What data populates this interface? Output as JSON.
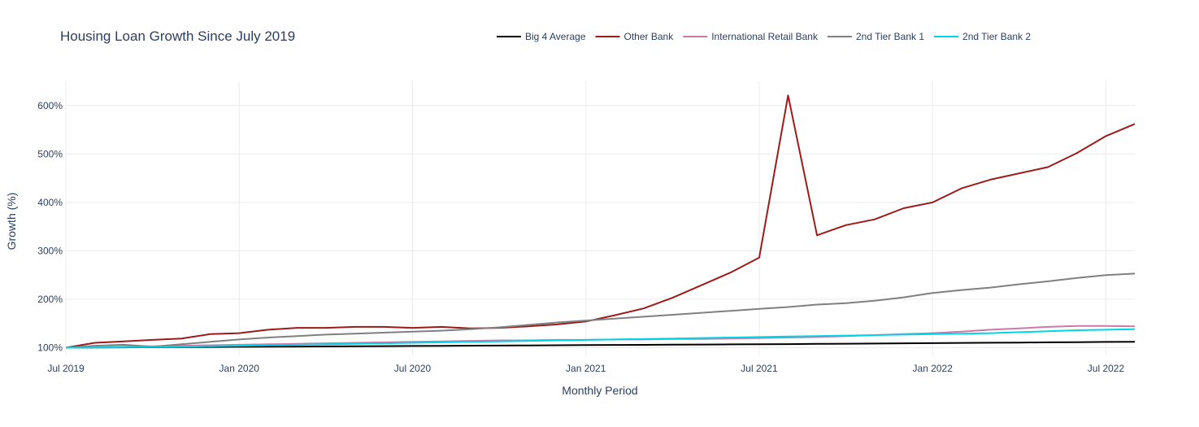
{
  "chart_data": {
    "type": "line",
    "title": "Housing Loan Growth Since July 2019",
    "xlabel": "Monthly Period",
    "ylabel": "Growth (%)",
    "x": [
      "2019-07",
      "2019-08",
      "2019-09",
      "2019-10",
      "2019-11",
      "2019-12",
      "2020-01",
      "2020-02",
      "2020-03",
      "2020-04",
      "2020-05",
      "2020-06",
      "2020-07",
      "2020-08",
      "2020-09",
      "2020-10",
      "2020-11",
      "2020-12",
      "2021-01",
      "2021-02",
      "2021-03",
      "2021-04",
      "2021-05",
      "2021-06",
      "2021-07",
      "2021-08",
      "2021-09",
      "2021-10",
      "2021-11",
      "2021-12",
      "2022-01",
      "2022-02",
      "2022-03",
      "2022-04",
      "2022-05",
      "2022-06",
      "2022-07",
      "2022-08"
    ],
    "x_ticks": [
      {
        "x": "2019-07",
        "label": "Jul 2019"
      },
      {
        "x": "2020-01",
        "label": "Jan 2020"
      },
      {
        "x": "2020-07",
        "label": "Jul 2020"
      },
      {
        "x": "2021-01",
        "label": "Jan 2021"
      },
      {
        "x": "2021-07",
        "label": "Jul 2021"
      },
      {
        "x": "2022-01",
        "label": "Jan 2022"
      },
      {
        "x": "2022-07",
        "label": "Jul 2022"
      }
    ],
    "y_ticks": [
      {
        "value": 100,
        "label": "100%"
      },
      {
        "value": 200,
        "label": "200%"
      },
      {
        "value": 300,
        "label": "300%"
      },
      {
        "value": 400,
        "label": "400%"
      },
      {
        "value": 500,
        "label": "500%"
      },
      {
        "value": 600,
        "label": "600%"
      }
    ],
    "xlim": [
      "2019-07",
      "2022-08"
    ],
    "ylim": [
      84,
      650
    ],
    "grid": true,
    "legend_position": "top-right",
    "series": [
      {
        "name": "Big 4 Average",
        "color": "#000000",
        "values": [
          100,
          100.3,
          100.6,
          100.9,
          101.2,
          101.5,
          101.8,
          102.0,
          102.3,
          102.6,
          102.9,
          103.2,
          103.5,
          103.8,
          104.1,
          104.4,
          104.7,
          105.0,
          105.3,
          105.6,
          105.9,
          106.2,
          106.5,
          106.8,
          107.1,
          107.4,
          107.8,
          108.2,
          108.6,
          109.0,
          109.4,
          109.8,
          110.2,
          110.6,
          111.0,
          111.4,
          111.8,
          112.2
        ]
      },
      {
        "name": "Other Bank",
        "color": "#9b1b1b",
        "values": [
          100,
          110,
          113,
          116,
          119,
          128,
          130,
          137,
          141,
          141,
          143,
          143,
          141,
          143,
          140,
          141,
          144,
          148,
          154,
          167,
          181,
          203,
          229,
          255,
          286,
          621,
          332,
          353,
          365,
          388,
          400,
          429,
          447,
          460,
          473,
          502,
          537,
          562
        ]
      },
      {
        "name": "International Retail Bank",
        "color": "#cc79a7",
        "values": [
          100,
          101,
          102,
          103,
          104,
          105,
          106,
          107,
          108,
          109,
          110,
          111,
          112,
          113,
          114,
          115,
          115,
          116,
          116,
          117,
          117,
          118,
          118,
          119,
          120,
          121,
          122,
          124,
          126,
          128,
          130,
          133,
          137,
          140,
          143,
          145,
          145,
          144
        ]
      },
      {
        "name": "2nd Tier Bank 1",
        "color": "#808080",
        "values": [
          100,
          104,
          106,
          102,
          107,
          112,
          117,
          121,
          124,
          127,
          129,
          131,
          133,
          135,
          138,
          142,
          147,
          152,
          156,
          160,
          164,
          168,
          172,
          176,
          180,
          184,
          189,
          192,
          197,
          204,
          213,
          219,
          224,
          231,
          237,
          244,
          250,
          253
        ]
      },
      {
        "name": "2nd Tier Bank 2",
        "color": "#00d5e8",
        "values": [
          100,
          100.5,
          101,
          101.5,
          102,
          103,
          104,
          105,
          106,
          107,
          108,
          109,
          110,
          111,
          112,
          113,
          114,
          115,
          116,
          117,
          118,
          119,
          120,
          121,
          122,
          123,
          124,
          125,
          126,
          127,
          128,
          129,
          130,
          132,
          134,
          136,
          137,
          138
        ]
      }
    ]
  }
}
